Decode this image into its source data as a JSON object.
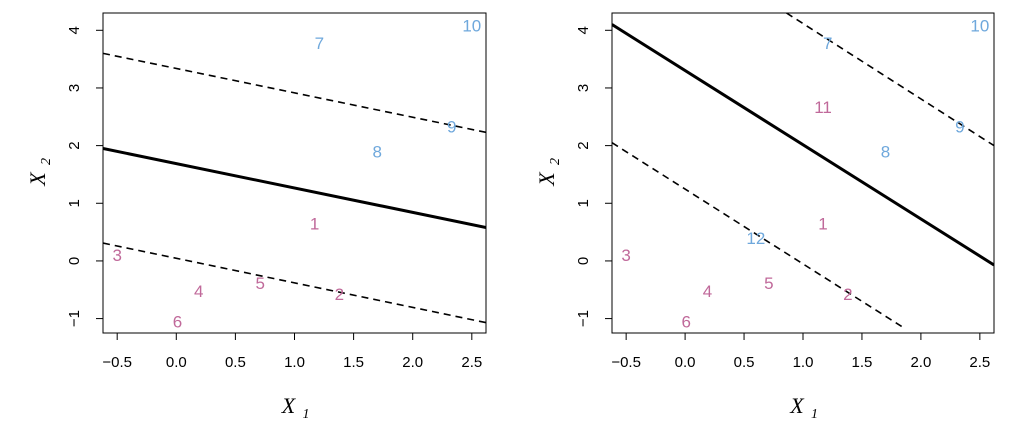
{
  "chart_data": [
    {
      "type": "scatter",
      "xlabel": "X",
      "xlabel_sub": "1",
      "ylabel": "X",
      "ylabel_sub": "2",
      "xlim": [
        -0.62,
        2.62
      ],
      "ylim": [
        -1.25,
        4.3
      ],
      "xticks": [
        -0.5,
        0.0,
        0.5,
        1.0,
        1.5,
        2.0,
        2.5
      ],
      "xtick_labels": [
        "−0.5",
        "0.0",
        "0.5",
        "1.0",
        "1.5",
        "2.0",
        "2.5"
      ],
      "yticks": [
        -1,
        0,
        1,
        2,
        3,
        4
      ],
      "ytick_labels": [
        "−1",
        "0",
        "1",
        "2",
        "3",
        "4"
      ],
      "grid": false,
      "series": [
        {
          "color": "#c0699a",
          "points": [
            {
              "label": "1",
              "x": 1.17,
              "y": 0.65
            },
            {
              "label": "2",
              "x": 1.38,
              "y": -0.57
            },
            {
              "label": "3",
              "x": -0.5,
              "y": 0.1
            },
            {
              "label": "4",
              "x": 0.19,
              "y": -0.52
            },
            {
              "label": "5",
              "x": 0.71,
              "y": -0.38
            },
            {
              "label": "6",
              "x": 0.01,
              "y": -1.05
            }
          ]
        },
        {
          "color": "#6fa8dc",
          "points": [
            {
              "label": "7",
              "x": 1.21,
              "y": 3.78
            },
            {
              "label": "8",
              "x": 1.7,
              "y": 1.9
            },
            {
              "label": "9",
              "x": 2.33,
              "y": 2.33
            },
            {
              "label": "10",
              "x": 2.5,
              "y": 4.08
            }
          ]
        }
      ],
      "lines": [
        {
          "style": "solid",
          "x": [
            -0.62,
            2.62
          ],
          "y": [
            1.95,
            0.58
          ]
        },
        {
          "style": "dashed",
          "x": [
            -0.62,
            2.62
          ],
          "y": [
            3.6,
            2.23
          ]
        },
        {
          "style": "dashed",
          "x": [
            -0.62,
            2.62
          ],
          "y": [
            0.31,
            -1.07
          ]
        }
      ]
    },
    {
      "type": "scatter",
      "xlabel": "X",
      "xlabel_sub": "1",
      "ylabel": "X",
      "ylabel_sub": "2",
      "xlim": [
        -0.62,
        2.62
      ],
      "ylim": [
        -1.25,
        4.3
      ],
      "xticks": [
        -0.5,
        0.0,
        0.5,
        1.0,
        1.5,
        2.0,
        2.5
      ],
      "xtick_labels": [
        "−0.5",
        "0.0",
        "0.5",
        "1.0",
        "1.5",
        "2.0",
        "2.5"
      ],
      "yticks": [
        -1,
        0,
        1,
        2,
        3,
        4
      ],
      "ytick_labels": [
        "−1",
        "0",
        "1",
        "2",
        "3",
        "4"
      ],
      "grid": false,
      "series": [
        {
          "color": "#c0699a",
          "points": [
            {
              "label": "1",
              "x": 1.17,
              "y": 0.65
            },
            {
              "label": "2",
              "x": 1.38,
              "y": -0.57
            },
            {
              "label": "3",
              "x": -0.5,
              "y": 0.1
            },
            {
              "label": "4",
              "x": 0.19,
              "y": -0.52
            },
            {
              "label": "5",
              "x": 0.71,
              "y": -0.38
            },
            {
              "label": "6",
              "x": 0.01,
              "y": -1.05
            },
            {
              "label": "11",
              "x": 1.17,
              "y": 2.67
            }
          ]
        },
        {
          "color": "#6fa8dc",
          "points": [
            {
              "label": "7",
              "x": 1.21,
              "y": 3.78
            },
            {
              "label": "8",
              "x": 1.7,
              "y": 1.9
            },
            {
              "label": "9",
              "x": 2.33,
              "y": 2.33
            },
            {
              "label": "10",
              "x": 2.5,
              "y": 4.08
            },
            {
              "label": "12",
              "x": 0.6,
              "y": 0.4
            }
          ]
        }
      ],
      "lines": [
        {
          "style": "solid",
          "x": [
            -0.62,
            2.62
          ],
          "y": [
            4.1,
            -0.07
          ]
        },
        {
          "style": "dashed",
          "x": [
            0.86,
            2.62
          ],
          "y": [
            4.3,
            2.0
          ]
        },
        {
          "style": "dashed",
          "x": [
            -0.62,
            1.87
          ],
          "y": [
            2.05,
            -1.18
          ]
        }
      ]
    }
  ]
}
